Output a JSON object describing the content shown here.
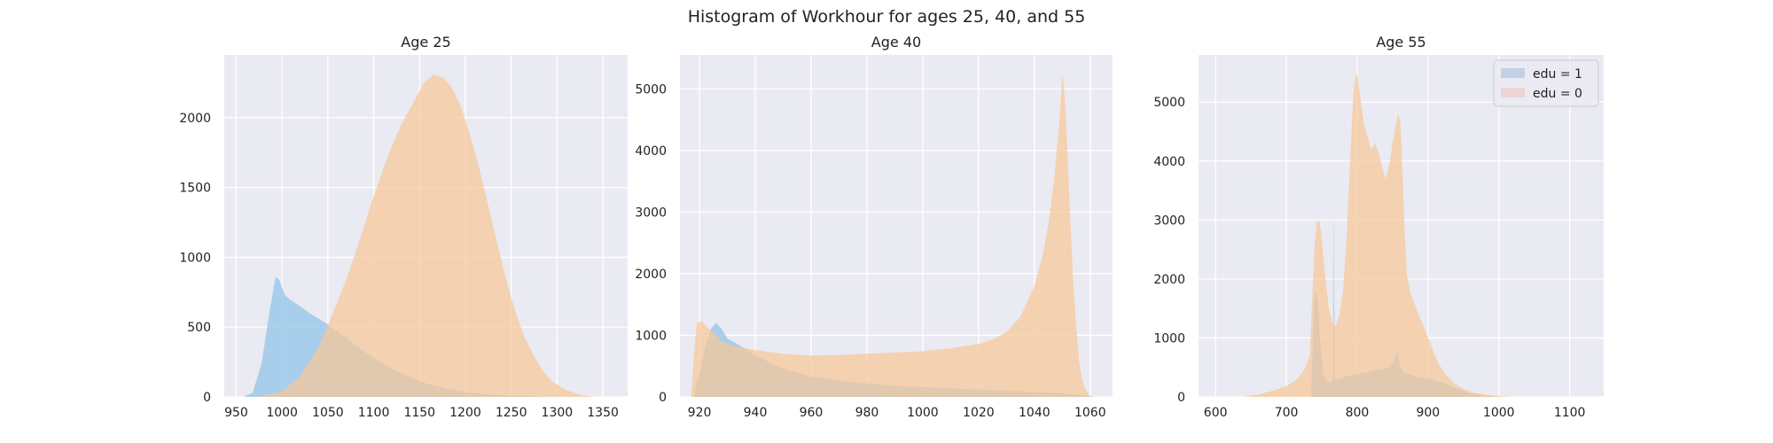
{
  "figure": {
    "title": "Histogram of Workhour for ages 25, 40, and 55"
  },
  "colors": {
    "background": "#EAEAF2",
    "grid": "#FFFFFF",
    "edu1": "#9CC9EA",
    "edu0": "#F7C897",
    "overlap": "#BFC19A",
    "legend_edu1": "#C3D0E6",
    "legend_edu0": "#EBD5D6"
  },
  "legend": {
    "items": [
      "edu = 1",
      "edu = 0"
    ],
    "location": "upper right",
    "panel": 2
  },
  "chart_data": [
    {
      "type": "area",
      "title": "Age 25",
      "xlim": [
        937,
        1377
      ],
      "ylim": [
        0,
        2450
      ],
      "xticks": [
        950,
        1000,
        1050,
        1100,
        1150,
        1200,
        1250,
        1300,
        1350
      ],
      "yticks": [
        0,
        500,
        1000,
        1500,
        2000
      ],
      "grid": true,
      "series": [
        {
          "name": "edu = 1",
          "points": [
            [
              958,
              0
            ],
            [
              968,
              30
            ],
            [
              978,
              250
            ],
            [
              986,
              600
            ],
            [
              993,
              860
            ],
            [
              997,
              840
            ],
            [
              1003,
              730
            ],
            [
              1010,
              690
            ],
            [
              1020,
              650
            ],
            [
              1030,
              600
            ],
            [
              1040,
              560
            ],
            [
              1050,
              520
            ],
            [
              1060,
              470
            ],
            [
              1075,
              400
            ],
            [
              1090,
              320
            ],
            [
              1105,
              260
            ],
            [
              1120,
              200
            ],
            [
              1140,
              140
            ],
            [
              1160,
              90
            ],
            [
              1180,
              60
            ],
            [
              1200,
              35
            ],
            [
              1220,
              20
            ],
            [
              1250,
              8
            ],
            [
              1280,
              3
            ],
            [
              1310,
              0
            ]
          ]
        },
        {
          "name": "edu = 0",
          "points": [
            [
              975,
              0
            ],
            [
              1000,
              40
            ],
            [
              1020,
              150
            ],
            [
              1040,
              360
            ],
            [
              1055,
              590
            ],
            [
              1070,
              840
            ],
            [
              1085,
              1130
            ],
            [
              1100,
              1440
            ],
            [
              1115,
              1720
            ],
            [
              1130,
              1950
            ],
            [
              1145,
              2130
            ],
            [
              1155,
              2250
            ],
            [
              1165,
              2310
            ],
            [
              1175,
              2290
            ],
            [
              1185,
              2220
            ],
            [
              1195,
              2080
            ],
            [
              1205,
              1880
            ],
            [
              1215,
              1640
            ],
            [
              1225,
              1370
            ],
            [
              1235,
              1090
            ],
            [
              1245,
              830
            ],
            [
              1255,
              600
            ],
            [
              1265,
              420
            ],
            [
              1275,
              290
            ],
            [
              1285,
              180
            ],
            [
              1295,
              110
            ],
            [
              1310,
              50
            ],
            [
              1325,
              15
            ],
            [
              1340,
              0
            ]
          ]
        }
      ]
    },
    {
      "type": "area",
      "title": "Age 40",
      "xlim": [
        913,
        1068
      ],
      "ylim": [
        0,
        5550
      ],
      "xticks": [
        920,
        940,
        960,
        980,
        1000,
        1020,
        1040,
        1060
      ],
      "yticks": [
        0,
        1000,
        2000,
        3000,
        4000,
        5000
      ],
      "grid": true,
      "series": [
        {
          "name": "edu = 1",
          "points": [
            [
              918,
              0
            ],
            [
              920,
              400
            ],
            [
              922,
              800
            ],
            [
              924,
              1100
            ],
            [
              926,
              1200
            ],
            [
              928,
              1100
            ],
            [
              930,
              950
            ],
            [
              935,
              820
            ],
            [
              940,
              680
            ],
            [
              945,
              560
            ],
            [
              950,
              460
            ],
            [
              955,
              390
            ],
            [
              960,
              330
            ],
            [
              970,
              260
            ],
            [
              980,
              220
            ],
            [
              990,
              180
            ],
            [
              1000,
              160
            ],
            [
              1010,
              140
            ],
            [
              1020,
              120
            ],
            [
              1030,
              100
            ],
            [
              1040,
              80
            ],
            [
              1050,
              60
            ],
            [
              1055,
              40
            ],
            [
              1060,
              10
            ],
            [
              1062,
              0
            ]
          ]
        },
        {
          "name": "edu = 0",
          "points": [
            [
              917,
              0
            ],
            [
              918,
              650
            ],
            [
              919,
              1200
            ],
            [
              921,
              1230
            ],
            [
              923,
              1120
            ],
            [
              925,
              1050
            ],
            [
              928,
              900
            ],
            [
              932,
              830
            ],
            [
              940,
              760
            ],
            [
              950,
              700
            ],
            [
              960,
              670
            ],
            [
              970,
              680
            ],
            [
              980,
              700
            ],
            [
              990,
              720
            ],
            [
              1000,
              740
            ],
            [
              1010,
              790
            ],
            [
              1020,
              860
            ],
            [
              1025,
              930
            ],
            [
              1030,
              1050
            ],
            [
              1035,
              1300
            ],
            [
              1040,
              1800
            ],
            [
              1043,
              2300
            ],
            [
              1045,
              2800
            ],
            [
              1047,
              3500
            ],
            [
              1049,
              4500
            ],
            [
              1050,
              5250
            ],
            [
              1051,
              4800
            ],
            [
              1052,
              3800
            ],
            [
              1053,
              2700
            ],
            [
              1054,
              1800
            ],
            [
              1055,
              1100
            ],
            [
              1056,
              600
            ],
            [
              1057,
              300
            ],
            [
              1058,
              150
            ],
            [
              1059,
              70
            ],
            [
              1060,
              0
            ]
          ]
        }
      ]
    },
    {
      "type": "area",
      "title": "Age 55",
      "xlim": [
        576,
        1148
      ],
      "ylim": [
        0,
        5800
      ],
      "xticks": [
        600,
        700,
        800,
        900,
        1000,
        1100
      ],
      "yticks": [
        0,
        1000,
        2000,
        3000,
        4000,
        5000
      ],
      "grid": true,
      "series": [
        {
          "name": "edu = 1",
          "points": [
            [
              735,
              0
            ],
            [
              737,
              800
            ],
            [
              739,
              1500
            ],
            [
              741,
              1800
            ],
            [
              743,
              1750
            ],
            [
              745,
              1500
            ],
            [
              748,
              900
            ],
            [
              752,
              400
            ],
            [
              757,
              250
            ],
            [
              763,
              250
            ],
            [
              766,
              300
            ],
            [
              767,
              3300
            ],
            [
              768,
              300
            ],
            [
              775,
              300
            ],
            [
              785,
              350
            ],
            [
              795,
              380
            ],
            [
              805,
              400
            ],
            [
              815,
              420
            ],
            [
              825,
              450
            ],
            [
              835,
              460
            ],
            [
              845,
              500
            ],
            [
              852,
              600
            ],
            [
              857,
              800
            ],
            [
              860,
              550
            ],
            [
              865,
              420
            ],
            [
              875,
              380
            ],
            [
              885,
              340
            ],
            [
              895,
              320
            ],
            [
              905,
              300
            ],
            [
              915,
              260
            ],
            [
              925,
              220
            ],
            [
              935,
              170
            ],
            [
              945,
              120
            ],
            [
              960,
              60
            ],
            [
              975,
              25
            ],
            [
              990,
              8
            ],
            [
              1005,
              0
            ]
          ]
        },
        {
          "name": "edu = 0",
          "points": [
            [
              640,
              0
            ],
            [
              660,
              40
            ],
            [
              680,
              100
            ],
            [
              700,
              180
            ],
            [
              715,
              300
            ],
            [
              725,
              450
            ],
            [
              733,
              700
            ],
            [
              737,
              1800
            ],
            [
              740,
              2600
            ],
            [
              743,
              2950
            ],
            [
              746,
              3000
            ],
            [
              749,
              2800
            ],
            [
              752,
              2400
            ],
            [
              756,
              1900
            ],
            [
              760,
              1500
            ],
            [
              765,
              1250
            ],
            [
              770,
              1200
            ],
            [
              775,
              1400
            ],
            [
              780,
              1800
            ],
            [
              785,
              2700
            ],
            [
              790,
              4000
            ],
            [
              793,
              4800
            ],
            [
              796,
              5300
            ],
            [
              799,
              5500
            ],
            [
              802,
              5300
            ],
            [
              806,
              4900
            ],
            [
              810,
              4600
            ],
            [
              815,
              4400
            ],
            [
              820,
              4200
            ],
            [
              825,
              4300
            ],
            [
              830,
              4150
            ],
            [
              835,
              3900
            ],
            [
              840,
              3700
            ],
            [
              845,
              3900
            ],
            [
              850,
              4300
            ],
            [
              855,
              4650
            ],
            [
              858,
              4800
            ],
            [
              861,
              4650
            ],
            [
              864,
              3800
            ],
            [
              867,
              2800
            ],
            [
              870,
              2100
            ],
            [
              875,
              1750
            ],
            [
              880,
              1600
            ],
            [
              885,
              1450
            ],
            [
              890,
              1300
            ],
            [
              895,
              1150
            ],
            [
              900,
              1000
            ],
            [
              905,
              850
            ],
            [
              910,
              700
            ],
            [
              915,
              560
            ],
            [
              925,
              380
            ],
            [
              935,
              250
            ],
            [
              950,
              130
            ],
            [
              965,
              70
            ],
            [
              980,
              40
            ],
            [
              1000,
              15
            ],
            [
              1020,
              0
            ]
          ]
        }
      ]
    }
  ]
}
